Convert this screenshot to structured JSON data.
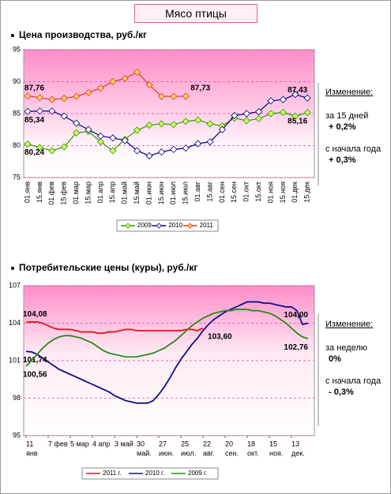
{
  "title": "Мясо птицы",
  "chart_data": [
    {
      "type": "line",
      "title": "Цена производства, руб./кг",
      "markers": true,
      "grid": true,
      "categories": [
        "01.янв",
        "15.янв",
        "01.фев",
        "15.фев",
        "01.мар",
        "15.мар",
        "01.апр",
        "15.апр",
        "01.май",
        "15.май",
        "01.июн",
        "15.июн",
        "01.июл",
        "15.июл",
        "01.авг",
        "15.авг",
        "01.сен",
        "15.сен",
        "01.окт",
        "15.окт",
        "01.ноя",
        "15.ноя",
        "01.дек",
        "15.дек"
      ],
      "ylim": [
        75,
        95
      ],
      "yticks": [
        75,
        80,
        85,
        90,
        95
      ],
      "series": [
        {
          "name": "2009",
          "color": "#339900",
          "marker_color": "#ccff66",
          "values": [
            80.24,
            79.7,
            79.2,
            79.8,
            82,
            82.2,
            80.6,
            79.2,
            81,
            82.4,
            83.2,
            83.4,
            83.3,
            83.8,
            84,
            83.4,
            83.1,
            84.3,
            83.9,
            84.2,
            85,
            85.2,
            84.6,
            85.16
          ],
          "value_labels": [
            "80,24",
            null,
            null,
            null,
            null,
            null,
            null,
            null,
            null,
            null,
            null,
            null,
            null,
            null,
            null,
            null,
            null,
            null,
            null,
            null,
            null,
            null,
            null,
            "85,16"
          ]
        },
        {
          "name": "2010",
          "color": "#000080",
          "marker_color": "#ffffff",
          "values": [
            85.34,
            85.4,
            85.4,
            84.6,
            83.5,
            82.5,
            81.5,
            81.2,
            80.8,
            79.2,
            78.4,
            79,
            79.4,
            79.6,
            80.3,
            80.6,
            82.5,
            84.7,
            85,
            85.3,
            87,
            87.2,
            88,
            87.43
          ],
          "value_labels": [
            "85,34",
            null,
            null,
            null,
            null,
            null,
            null,
            null,
            null,
            null,
            null,
            null,
            null,
            null,
            null,
            null,
            null,
            null,
            null,
            null,
            null,
            null,
            null,
            "87,43"
          ]
        },
        {
          "name": "2011",
          "color": "#e03c1f",
          "marker_color": "#ffcc66",
          "values": [
            87.76,
            87.5,
            87.2,
            87.4,
            87.7,
            88.3,
            89,
            90,
            90.5,
            91.5,
            89.5,
            87.7,
            87.7,
            87.73,
            null,
            null,
            null,
            null,
            null,
            null,
            null,
            null,
            null,
            null
          ],
          "value_labels": [
            "87,76",
            null,
            null,
            null,
            null,
            null,
            null,
            null,
            null,
            null,
            null,
            null,
            null,
            "87,73",
            null,
            null,
            null,
            null,
            null,
            null,
            null,
            null,
            null,
            null
          ]
        }
      ],
      "note": {
        "heading": "Изменение:",
        "items": [
          {
            "label": "за 15 дней",
            "value": "+ 0,2%"
          },
          {
            "label": "с начала года",
            "value": "+ 0,3%"
          }
        ]
      }
    },
    {
      "type": "line",
      "title": "Потребительские цены (куры), руб./кг",
      "markers": false,
      "grid": true,
      "categories": [
        [
          "11",
          "янв"
        ],
        null,
        null,
        null,
        [
          "7 фев"
        ],
        null,
        null,
        null,
        [
          "5 мар"
        ],
        null,
        null,
        null,
        [
          "4 апр"
        ],
        null,
        null,
        null,
        [
          "3 май"
        ],
        null,
        null,
        null,
        [
          "30",
          "май."
        ],
        null,
        null,
        null,
        [
          "27",
          "июн."
        ],
        null,
        null,
        null,
        [
          "25",
          "июл."
        ],
        null,
        null,
        null,
        [
          "22",
          "авг."
        ],
        null,
        null,
        null,
        [
          "20",
          "сен."
        ],
        null,
        null,
        null,
        [
          "18",
          "окт."
        ],
        null,
        null,
        null,
        [
          "15",
          "ноя."
        ],
        null,
        null,
        null,
        [
          "13",
          "дек."
        ],
        null,
        null,
        null
      ],
      "ylim": [
        95,
        107
      ],
      "yticks": [
        95,
        98,
        101,
        104,
        107
      ],
      "series": [
        {
          "name": "2011 г.",
          "color": "#e8141c",
          "values": [
            104.08,
            104.1,
            104.1,
            104,
            103.8,
            103.6,
            103.5,
            103.5,
            103.5,
            103.4,
            103.3,
            103.3,
            103.3,
            103.2,
            103.2,
            103.3,
            103.3,
            103.4,
            103.5,
            103.5,
            103.4,
            103.4,
            103.4,
            103.4,
            103.4,
            103.4,
            103.4,
            103.4,
            103.4,
            103.5,
            103.5,
            103.4,
            103.6,
            null,
            null,
            null,
            null,
            null,
            null,
            null,
            null,
            null,
            null,
            null,
            null,
            null,
            null,
            null,
            null,
            null,
            null,
            null
          ],
          "value_labels": [
            "104,08",
            null,
            null,
            null,
            null,
            null,
            null,
            null,
            null,
            null,
            null,
            null,
            null,
            null,
            null,
            null,
            null,
            null,
            null,
            null,
            null,
            null,
            null,
            null,
            null,
            null,
            null,
            null,
            null,
            null,
            null,
            null,
            "103,60",
            null,
            null,
            null,
            null,
            null,
            null,
            null,
            null,
            null,
            null,
            null,
            null,
            null,
            null,
            null,
            null,
            null,
            null,
            null
          ]
        },
        {
          "name": "2010 г.",
          "color": "#10108a",
          "values": [
            101.74,
            101.7,
            101.5,
            101.2,
            100.9,
            100.6,
            100.3,
            100.1,
            99.9,
            99.7,
            99.5,
            99.3,
            99.1,
            98.9,
            98.7,
            98.5,
            98.2,
            98,
            97.8,
            97.7,
            97.6,
            97.6,
            97.6,
            97.8,
            98.3,
            98.9,
            99.6,
            100.4,
            101.1,
            101.7,
            102.3,
            102.8,
            103.4,
            103.9,
            104.3,
            104.6,
            104.9,
            105.1,
            105.3,
            105.5,
            105.7,
            105.7,
            105.7,
            105.6,
            105.6,
            105.5,
            105.4,
            105.3,
            105.3,
            105.0,
            103.9,
            104.0
          ],
          "value_labels": [
            "101,74",
            null,
            null,
            null,
            null,
            null,
            null,
            null,
            null,
            null,
            null,
            null,
            null,
            null,
            null,
            null,
            null,
            null,
            null,
            null,
            null,
            null,
            null,
            null,
            null,
            null,
            null,
            null,
            null,
            null,
            null,
            null,
            null,
            null,
            null,
            null,
            null,
            null,
            null,
            null,
            null,
            null,
            null,
            null,
            null,
            null,
            null,
            null,
            null,
            null,
            null,
            "104,00"
          ]
        },
        {
          "name": "2009 г.",
          "color": "#2a8a1a",
          "values": [
            100.56,
            101,
            101.5,
            102,
            102.4,
            102.7,
            102.9,
            103,
            103,
            102.9,
            102.8,
            102.6,
            102.4,
            102.1,
            101.8,
            101.6,
            101.5,
            101.4,
            101.3,
            101.3,
            101.3,
            101.4,
            101.5,
            101.6,
            101.8,
            102,
            102.3,
            102.6,
            103,
            103.4,
            103.8,
            104.1,
            104.4,
            104.6,
            104.8,
            104.9,
            105,
            105,
            105.1,
            105.1,
            105.1,
            105,
            105,
            104.9,
            104.8,
            104.6,
            104.3,
            104,
            103.6,
            103.2,
            102.9,
            102.76
          ],
          "value_labels": [
            "100,56",
            null,
            null,
            null,
            null,
            null,
            null,
            null,
            null,
            null,
            null,
            null,
            null,
            null,
            null,
            null,
            null,
            null,
            null,
            null,
            null,
            null,
            null,
            null,
            null,
            null,
            null,
            null,
            null,
            null,
            null,
            null,
            null,
            null,
            null,
            null,
            null,
            null,
            null,
            null,
            null,
            null,
            null,
            null,
            null,
            null,
            null,
            null,
            null,
            null,
            null,
            "102,76"
          ]
        }
      ],
      "note": {
        "heading": "Изменение:",
        "items": [
          {
            "label": "за неделю",
            "value": "0%"
          },
          {
            "label": "с начала года",
            "value": "- 0,3%"
          }
        ]
      }
    }
  ]
}
